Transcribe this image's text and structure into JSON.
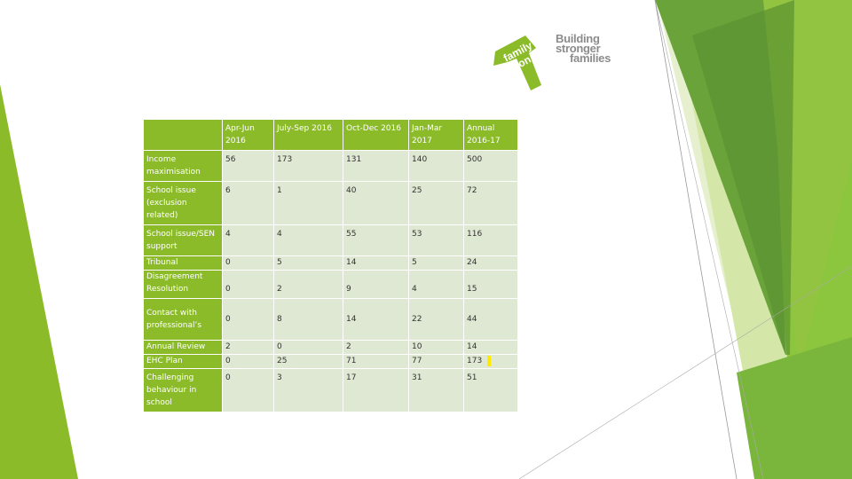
{
  "slide": {
    "brand_colors": {
      "primary_green": "#8cbb2a",
      "dark_green": "#5e9a2b",
      "light_green": "#cfe4a1",
      "cell_bg": "#dfe8d2",
      "text_grey": "#8c8c8c"
    },
    "logo": {
      "mark_text": [
        "family",
        "action"
      ],
      "tagline": [
        "Building",
        "stronger",
        "families"
      ]
    },
    "table": {
      "headers": [
        "",
        "Apr-Jun 2016",
        "July-Sep 2016",
        "Oct-Dec 2016",
        "Jan-Mar 2017",
        "Annual 2016-17"
      ],
      "rows": [
        {
          "label": "Income maximisation",
          "values": [
            "56",
            "173",
            "131",
            "140",
            "500"
          ]
        },
        {
          "label": "School issue (exclusion related)",
          "values": [
            "6",
            "1",
            "40",
            "25",
            "72"
          ]
        },
        {
          "label": "School issue/SEN support",
          "values": [
            "4",
            "4",
            "55",
            "53",
            "116"
          ]
        },
        {
          "label": "Tribunal",
          "values": [
            "0",
            "5",
            "14",
            "5",
            "24"
          ]
        },
        {
          "label": "Disagreement Resolution",
          "values": [
            "0",
            "2",
            "9",
            "4",
            "15"
          ]
        },
        {
          "label": "Contact with professional’s",
          "values": [
            "0",
            "8",
            "14",
            "22",
            "44"
          ]
        },
        {
          "label": "Annual Review",
          "values": [
            "2",
            "0",
            "2",
            "10",
            "14"
          ]
        },
        {
          "label": "EHC Plan",
          "values": [
            "0",
            "25",
            "71",
            "77",
            "173"
          ]
        },
        {
          "label": "Challenging behaviour in school",
          "values": [
            "0",
            "3",
            "17",
            "31",
            "51"
          ]
        }
      ]
    }
  }
}
